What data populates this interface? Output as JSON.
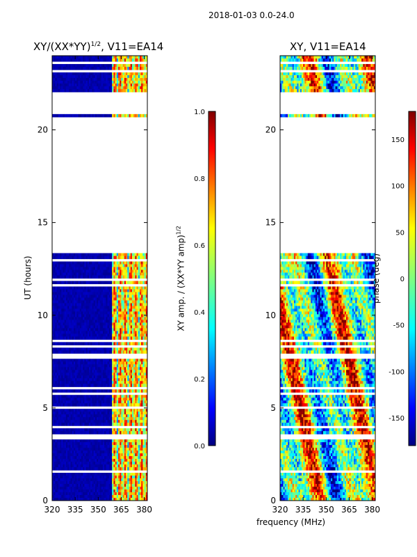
{
  "suptitle": "2018-01-03 0.0-24.0",
  "colors": {
    "jet": [
      "#00007f",
      "#0000ff",
      "#007fff",
      "#00ffff",
      "#7fff7f",
      "#ffff00",
      "#ff7f00",
      "#ff0000",
      "#7f0000"
    ],
    "frame": "#000000",
    "background": "#ffffff"
  },
  "chart_data": [
    {
      "type": "heatmap",
      "title": "XY/(XX*YY)^1/2, V11=EA14",
      "title_main": "XY/(XX*YY)",
      "title_sup": "1/2",
      "title_tail": ", V11=EA14",
      "xlabel": "frequency (MHz)",
      "ylabel": "UT (hours)",
      "xlim": [
        320,
        382
      ],
      "ylim": [
        0,
        24
      ],
      "xticks": [
        320,
        335,
        350,
        365,
        380
      ],
      "yticks": [
        0,
        5,
        10,
        15,
        20
      ],
      "colorbar": {
        "label": "XY amp. / (XX*YY amp)^1/2",
        "label_main": "XY amp. / (XX*YY amp)",
        "label_sup": "1/2",
        "range": [
          0.0,
          1.0
        ],
        "ticks": [
          "0.0",
          "0.2",
          "0.4",
          "0.6",
          "0.8",
          "1.0"
        ]
      },
      "data_gaps_hours": [
        [
          13.4,
          20.7
        ],
        [
          20.9,
          22.1
        ]
      ],
      "note": "Amplitude near 0 for 320-359 MHz; elevated values (0.3-1.0) in channels near 362-380 MHz"
    },
    {
      "type": "heatmap",
      "title": "XY, V11=EA14",
      "xlabel": "frequency (MHz)",
      "ylabel": "",
      "xlim": [
        320,
        382
      ],
      "ylim": [
        0,
        24
      ],
      "xticks": [
        320,
        335,
        350,
        365,
        380
      ],
      "yticks": [
        0,
        5,
        10,
        15,
        20
      ],
      "colorbar": {
        "label": "phase (deg)",
        "range": [
          -180,
          180
        ],
        "ticks": [
          "-150",
          "-100",
          "-50",
          "0",
          "50",
          "100",
          "150"
        ]
      },
      "data_gaps_hours": [
        [
          13.4,
          20.7
        ],
        [
          20.9,
          22.1
        ]
      ],
      "note": "Phase varies across full -180 to 180 deg range"
    }
  ]
}
